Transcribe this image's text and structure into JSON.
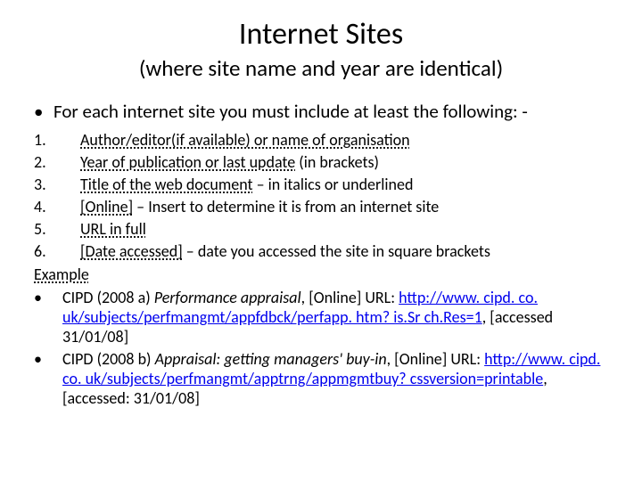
{
  "title": "Internet Sites",
  "subtitle": "(where site name and year are identical)",
  "intro_bullet": "•",
  "intro": "For each internet site you must include at least the following: -",
  "items": [
    {
      "num": "1.",
      "u": "Author/editor(if available) or name of organisation",
      "rest": ""
    },
    {
      "num": "2.",
      "u": "Year of publication or last update",
      "rest": " (in brackets)"
    },
    {
      "num": "3.",
      "u": "Title of the web document",
      "rest": " – in italics or underlined"
    },
    {
      "num": "4.",
      "u": "[Online]",
      "rest": " – Insert to determine it is from an internet site"
    },
    {
      "num": "5.",
      "u": "URL in full",
      "rest": ""
    },
    {
      "num": "6.",
      "u": "[Date accessed]",
      "rest": " – date you accessed the site in square brackets"
    }
  ],
  "example_label": "Example",
  "examples": [
    {
      "bullet": "•",
      "pre": "CIPD (2008 a) ",
      "ital": "Performance appraisal",
      "mid": ", [Online] URL: ",
      "link": "http://www. cipd. co. uk/subjects/perfmangmt/appfdbck/perfapp. htm? is.Sr ch.Res=1",
      "post": ", [accessed 31/01/08]"
    },
    {
      "bullet": "•",
      "pre": "CIPD (2008 b) ",
      "ital": "Appraisal: getting managers' buy-in",
      "mid": ", [Online] URL: ",
      "link": "http://www. cipd. co. uk/subjects/perfmangmt/apptrng/appmgmtbuy? cssversion=printable",
      "post": ", [accessed: 31/01/08]"
    }
  ],
  "colors": {
    "text": "#000000",
    "link": "#0000ee",
    "background": "#ffffff"
  }
}
